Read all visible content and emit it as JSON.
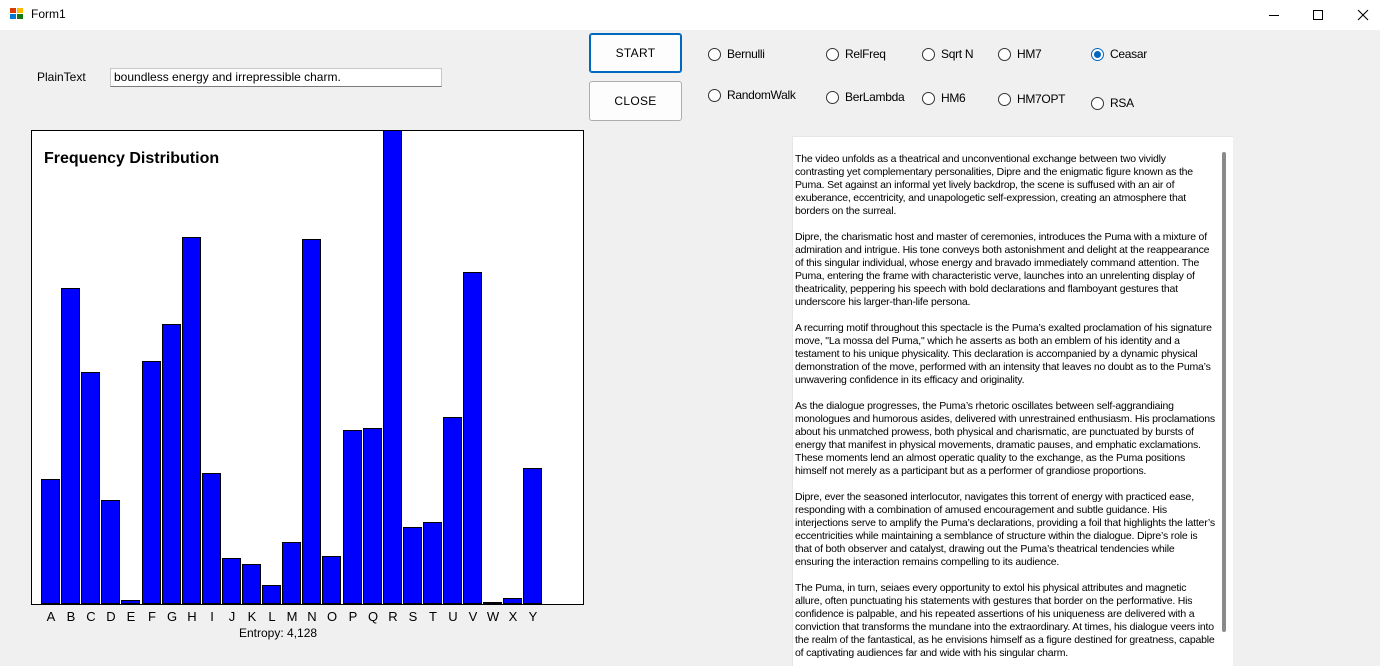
{
  "window": {
    "title": "Form1",
    "minimize_icon": "minimize-icon",
    "maximize_icon": "maximize-icon",
    "close_icon": "close-icon"
  },
  "plaintext": {
    "label": "PlainText",
    "value": "boundless energy and irrepressible charm."
  },
  "buttons": {
    "start": "START",
    "close": "CLOSE"
  },
  "radios": [
    {
      "id": "bernulli",
      "label": "Bernulli",
      "checked": false
    },
    {
      "id": "relfreq",
      "label": "RelFreq",
      "checked": false
    },
    {
      "id": "sqrt-n",
      "label": "Sqrt N",
      "checked": false
    },
    {
      "id": "hm7",
      "label": "HM7",
      "checked": false
    },
    {
      "id": "ceasar",
      "label": "Ceasar",
      "checked": true
    },
    {
      "id": "randomwalk",
      "label": "RandomWalk",
      "checked": false
    },
    {
      "id": "berlambda",
      "label": "BerLambda",
      "checked": false
    },
    {
      "id": "hm6",
      "label": "HM6",
      "checked": false
    },
    {
      "id": "hm7opt",
      "label": "HM7OPT",
      "checked": false
    },
    {
      "id": "rsa",
      "label": "RSA",
      "checked": false
    }
  ],
  "chart_data": {
    "type": "bar",
    "title": "Frequency Distribution",
    "categories": [
      "A",
      "B",
      "C",
      "D",
      "E",
      "F",
      "G",
      "H",
      "I",
      "J",
      "K",
      "L",
      "M",
      "N",
      "O",
      "P",
      "Q",
      "R",
      "S",
      "T",
      "U",
      "V",
      "W",
      "X",
      "Y"
    ],
    "values": [
      26.4,
      66.7,
      48.9,
      21.9,
      0.8,
      51.3,
      59.1,
      77.4,
      27.6,
      9.7,
      8.4,
      4.0,
      13.1,
      76.9,
      10.1,
      36.8,
      37.2,
      100,
      16.3,
      17.3,
      39.5,
      70.0,
      0.2,
      1.3,
      28.6
    ],
    "bar_color": "#0000ff",
    "ylim": [
      0,
      100
    ],
    "grid": false,
    "footer": "Entropy: 4,128"
  },
  "text_output": {
    "paragraphs": [
      "The video unfolds as a theatrical and unconventional exchange between two vividly contrasting yet complementary personalities, Dipre and the enigmatic figure known as the Puma. Set against an informal yet lively backdrop, the scene is suffused with an air of exuberance, eccentricity, and unapologetic self-expression, creating an atmosphere that borders on the surreal.",
      "Dipre, the charismatic host and master of ceremonies, introduces the Puma with a mixture of admiration and intrigue. His tone conveys both astonishment and delight at the reappearance of this singular individual, whose energy and bravado immediately command attention. The Puma, entering the frame with characteristic verve, launches into an unrelenting display of theatricality, peppering his speech with bold declarations and flamboyant gestures that underscore his larger-than-life persona.",
      "A recurring motif throughout this spectacle is the Puma’s exalted proclamation of his signature move, \"La mossa del Puma,\" which he asserts as both an emblem of his identity and a testament to his unique physicality. This declaration is accompanied by a dynamic physical demonstration of the move, performed with an intensity that leaves no doubt as to the Puma’s unwavering confidence in its efficacy and originality.",
      "As the dialogue progresses, the Puma’s rhetoric oscillates between self-aggrandiaing monologues and humorous asides, delivered with unrestrained enthusiasm. His proclamations about his unmatched prowess, both physical and charismatic, are punctuated by bursts of energy that manifest in physical movements, dramatic pauses, and emphatic exclamations. These moments lend an almost operatic quality to the exchange, as the Puma positions himself not merely as a participant but as a performer of grandiose proportions.",
      "Dipre, ever the seasoned interlocutor, navigates this torrent of energy with practiced ease, responding with a combination of amused encouragement and subtle guidance. His interjections serve to amplify the Puma’s declarations, providing a foil that highlights the latter’s eccentricities while maintaining a semblance of structure within the dialogue. Dipre’s role is that of both observer and catalyst, drawing out the Puma’s theatrical tendencies while ensuring the interaction remains compelling to its audience.",
      "The Puma, in turn, seiaes every opportunity to extol his physical attributes and magnetic allure, often punctuating his statements with gestures that border on the performative. His confidence is palpable, and his repeated assertions of his uniqueness are delivered with a conviction that transforms the mundane into the extraordinary. At times, his dialogue veers into the realm of the fantastical, as he envisions himself as a figure destined for greatness, capable of captivating audiences far and wide with his singular charm."
    ]
  }
}
